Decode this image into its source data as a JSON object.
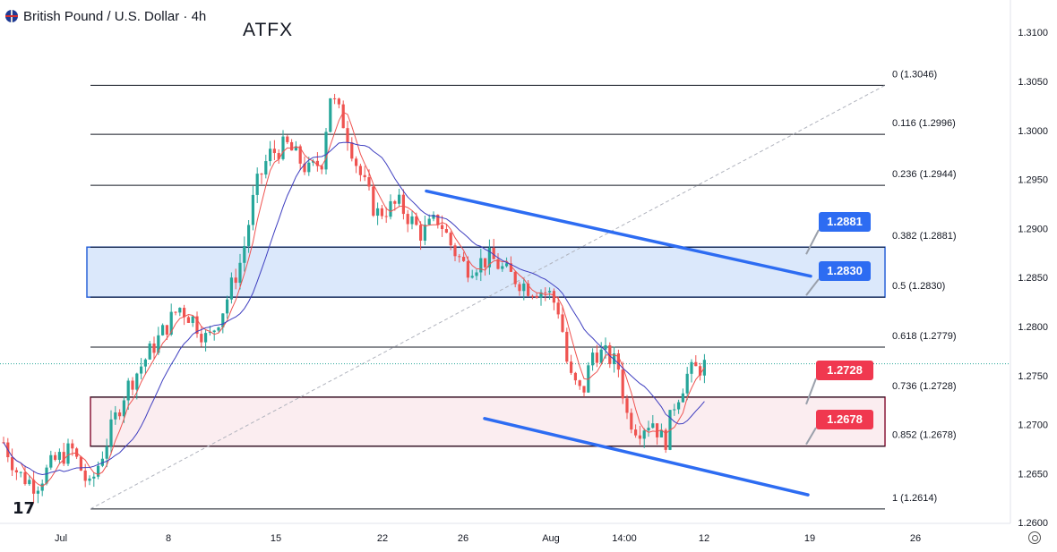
{
  "header": {
    "title": "British Pound / U.S. Dollar · 4h",
    "brand": "ATFX"
  },
  "chart_data": {
    "type": "candlestick",
    "symbol": "British Pound / U.S. Dollar",
    "timeframe": "4h",
    "ylim": [
      1.2595,
      1.3115
    ],
    "y_ticks": [
      "1.3100",
      "1.3050",
      "1.3000",
      "1.2950",
      "1.2900",
      "1.2850",
      "1.2800",
      "1.2750",
      "1.2700",
      "1.2650",
      "1.2600"
    ],
    "x_ticks": [
      "Jul",
      "8",
      "15",
      "22",
      "26",
      "Aug",
      "14:00",
      "12",
      "19",
      "26"
    ],
    "fibonacci": [
      {
        "level": "0",
        "price": 1.3046,
        "label": "0 (1.3046)"
      },
      {
        "level": "0.116",
        "price": 1.2996,
        "label": "0.116 (1.2996)"
      },
      {
        "level": "0.236",
        "price": 1.2944,
        "label": "0.236 (1.2944)"
      },
      {
        "level": "0.382",
        "price": 1.2881,
        "label": "0.382 (1.2881)"
      },
      {
        "level": "0.5",
        "price": 1.283,
        "label": "0.5 (1.2830)"
      },
      {
        "level": "0.618",
        "price": 1.2779,
        "label": "0.618 (1.2779)"
      },
      {
        "level": "0.736",
        "price": 1.2728,
        "label": "0.736 (1.2728)"
      },
      {
        "level": "0.852",
        "price": 1.2678,
        "label": "0.852 (1.2678)"
      },
      {
        "level": "1",
        "price": 1.2614,
        "label": "1 (1.2614)"
      }
    ],
    "zones": [
      {
        "name": "resistance",
        "top": 1.2881,
        "bottom": 1.283,
        "fill": "#dbe8fb",
        "stroke": "#2a62d8"
      },
      {
        "name": "support",
        "top": 1.2728,
        "bottom": 1.2678,
        "fill": "#fbedf0",
        "stroke": "#8b1a3a"
      }
    ],
    "callouts": [
      {
        "text": "1.2881",
        "price": 1.2881,
        "color": "#2d6cf2"
      },
      {
        "text": "1.2830",
        "price": 1.283,
        "color": "#2d6cf2"
      },
      {
        "text": "1.2728",
        "price": 1.2728,
        "color": "#f0384f"
      },
      {
        "text": "1.2678",
        "price": 1.2678,
        "color": "#f0384f"
      }
    ],
    "trendlines": [
      {
        "name": "upper-channel",
        "color": "#2d6cf2",
        "points": [
          [
            "Jul 24",
            1.294
          ],
          [
            "Aug 19",
            1.2855
          ]
        ]
      },
      {
        "name": "lower-channel",
        "color": "#2d6cf2",
        "points": [
          [
            "Aug 1",
            1.2708
          ],
          [
            "Aug 19",
            1.2632
          ]
        ]
      }
    ],
    "current_price_line": 1.2762,
    "colors": {
      "up": "#26a69a",
      "down": "#ef5350",
      "ma_fast": "#ef5350",
      "ma_slow": "#3f3fc0",
      "fib": "#131722",
      "grid": "#f0f3fa"
    }
  }
}
